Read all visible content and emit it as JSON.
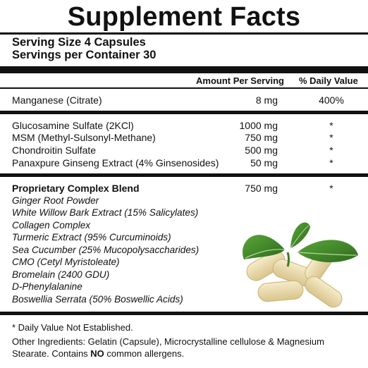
{
  "title": "Supplement Facts",
  "serving_size": "Serving Size 4 Capsules",
  "servings_per_container": "Servings per Container 30",
  "header": {
    "amount": "Amount Per Serving",
    "dv": "% Daily Value"
  },
  "vitamins": [
    {
      "name": "Manganese (Citrate)",
      "amount": "8 mg",
      "dv": "400%"
    }
  ],
  "nutrients": [
    {
      "name": "Glucosamine Sulfate (2KCl)",
      "amount": "1000 mg",
      "dv": "*"
    },
    {
      "name": "MSM (Methyl-Sulsonyl-Methane)",
      "amount": "750 mg",
      "dv": "*"
    },
    {
      "name": "Chondroitin Sulfate",
      "amount": "500 mg",
      "dv": "*"
    },
    {
      "name": "Panaxpure Ginseng Extract (4% Ginsenosides)",
      "amount": "50 mg",
      "dv": "*"
    }
  ],
  "blend": {
    "name": "Proprietary Complex Blend",
    "amount": "750 mg",
    "dv": "*",
    "ingredients": [
      "Ginger Root Powder",
      "White Willow Bark Extract (15% Salicylates)",
      "Collagen Complex",
      "Turmeric Extract (95% Curcuminoids)",
      "Sea Cucumber (25% Mucopolysaccharides)",
      "CMO (Cetyl Myristoleate)",
      "Bromelain (2400 GDU)",
      "D-Phenylalanine",
      "Boswellia Serrata (50% Boswellic Acids)"
    ]
  },
  "footnote": "* Daily Value Not Established.",
  "other_ingredients": {
    "line1": "Other Ingredients: Gelatin (Capsule), Microcrystalline cellulose & Magnesium",
    "line2_pre": "Stearate. Contains ",
    "line2_bold": "NO",
    "line2_post": " common allergens."
  },
  "colors": {
    "leaf": "#3f8c2a",
    "leaf_dark": "#2d6a1c",
    "capsule": "#efe0b4"
  }
}
